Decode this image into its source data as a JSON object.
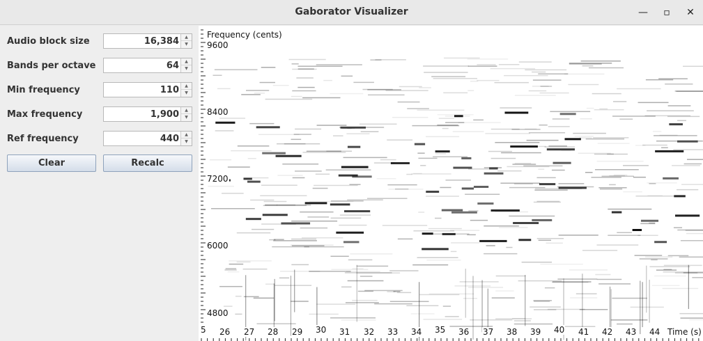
{
  "window": {
    "title": "Gaborator Visualizer",
    "minimize_glyph": "—",
    "maximize_glyph": "▫",
    "close_glyph": "✕"
  },
  "controls": [
    {
      "label": "Audio block size",
      "value": "16,384"
    },
    {
      "label": "Bands per octave",
      "value": "64"
    },
    {
      "label": "Min frequency",
      "value": "110"
    },
    {
      "label": "Max frequency",
      "value": "1,900"
    },
    {
      "label": "Ref frequency",
      "value": "440"
    }
  ],
  "buttons": {
    "clear": "Clear",
    "recalc": "Recalc"
  },
  "spectrogram": {
    "y_axis_title": "Frequency (cents)",
    "x_axis_title": "Time (s)",
    "y_ticks": [
      "9600",
      "8400",
      "7200",
      "6000",
      "4800"
    ],
    "x_ticks": [
      "5",
      "26",
      "27",
      "28",
      "29",
      "30",
      "31",
      "32",
      "33",
      "34",
      "35",
      "36",
      "37",
      "38",
      "39",
      "40",
      "41",
      "42",
      "43",
      "44"
    ]
  }
}
